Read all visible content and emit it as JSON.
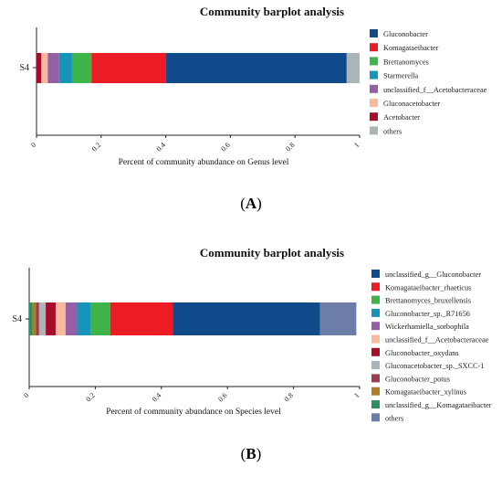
{
  "chart_data": [
    {
      "type": "bar",
      "orientation": "horizontal",
      "stacked": true,
      "title": "Community barplot analysis",
      "xlabel": "Percent of community abundance on Genus level",
      "categories": [
        "S4"
      ],
      "xlim": [
        0,
        1
      ],
      "xticks": [
        "0",
        "0.2",
        "0.4",
        "0.6",
        "0.8",
        "1"
      ],
      "panel_label": "A",
      "legend_position": "right",
      "series": [
        {
          "name": "Acetobacter",
          "values": [
            0.015
          ],
          "color": "#a50d2b"
        },
        {
          "name": "Gluconacetobacter",
          "values": [
            0.02
          ],
          "color": "#f9b99d"
        },
        {
          "name": "unclassified_f__Acetobacteraceae",
          "values": [
            0.035
          ],
          "color": "#955fa6"
        },
        {
          "name": "Starmerella",
          "values": [
            0.04
          ],
          "color": "#1596b8"
        },
        {
          "name": "Brettanomyces",
          "values": [
            0.06
          ],
          "color": "#3fb449"
        },
        {
          "name": "Komagataeibacter",
          "values": [
            0.23
          ],
          "color": "#ec1c24"
        },
        {
          "name": "Gluconobacter",
          "values": [
            0.56
          ],
          "color": "#114a8b"
        },
        {
          "name": "others",
          "values": [
            0.04
          ],
          "color": "#aab5b9"
        }
      ],
      "legend_order": [
        "Gluconobacter",
        "Komagataeibacter",
        "Brettanomyces",
        "Starmerella",
        "unclassified_f__Acetobacteraceae",
        "Gluconacetobacter",
        "Acetobacter",
        "others"
      ]
    },
    {
      "type": "bar",
      "orientation": "horizontal",
      "stacked": true,
      "title": "Community barplot analysis",
      "xlabel": "Percent of community abundance on Species level",
      "categories": [
        "S4"
      ],
      "xlim": [
        0,
        1
      ],
      "xticks": [
        "0",
        "0.2",
        "0.4",
        "0.6",
        "0.8",
        "1"
      ],
      "panel_label": "B",
      "legend_position": "right",
      "series": [
        {
          "name": "unclassified_g__Komagataeibacter",
          "values": [
            0.01
          ],
          "color": "#2e8f63"
        },
        {
          "name": "Komagataeibacter_xylinus",
          "values": [
            0.01
          ],
          "color": "#ad7f28"
        },
        {
          "name": "Gluconobacter_potus",
          "values": [
            0.01
          ],
          "color": "#9c3b55"
        },
        {
          "name": "Gluconacetobacter_sp._SXCC-1",
          "values": [
            0.02
          ],
          "color": "#aab5b9"
        },
        {
          "name": "Gluconobacter_oxydans",
          "values": [
            0.03
          ],
          "color": "#a50d2b"
        },
        {
          "name": "unclassified_f__Acetobacteraceae",
          "values": [
            0.03
          ],
          "color": "#f9b99d"
        },
        {
          "name": "Wickerhamiella_sorbophila",
          "values": [
            0.035
          ],
          "color": "#955fa6"
        },
        {
          "name": "Gluconobacter_sp._R71656",
          "values": [
            0.04
          ],
          "color": "#1596b8"
        },
        {
          "name": "Brettanomyces_bruxellensis",
          "values": [
            0.06
          ],
          "color": "#3fb449"
        },
        {
          "name": "Komagataeibacter_rhaeticus",
          "values": [
            0.19
          ],
          "color": "#ec1c24"
        },
        {
          "name": "unclassified_g__Gluconobacter",
          "values": [
            0.445
          ],
          "color": "#114a8b"
        },
        {
          "name": "others",
          "values": [
            0.11
          ],
          "color": "#6c7ea8"
        }
      ],
      "legend_order": [
        "unclassified_g__Gluconobacter",
        "Komagataeibacter_rhaeticus",
        "Brettanomyces_bruxellensis",
        "Gluconobacter_sp._R71656",
        "Wickerhamiella_sorbophila",
        "unclassified_f__Acetobacteraceae",
        "Gluconobacter_oxydans",
        "Gluconacetobacter_sp._SXCC-1",
        "Gluconobacter_potus",
        "Komagataeibacter_xylinus",
        "unclassified_g__Komagataeibacter",
        "others"
      ]
    }
  ]
}
